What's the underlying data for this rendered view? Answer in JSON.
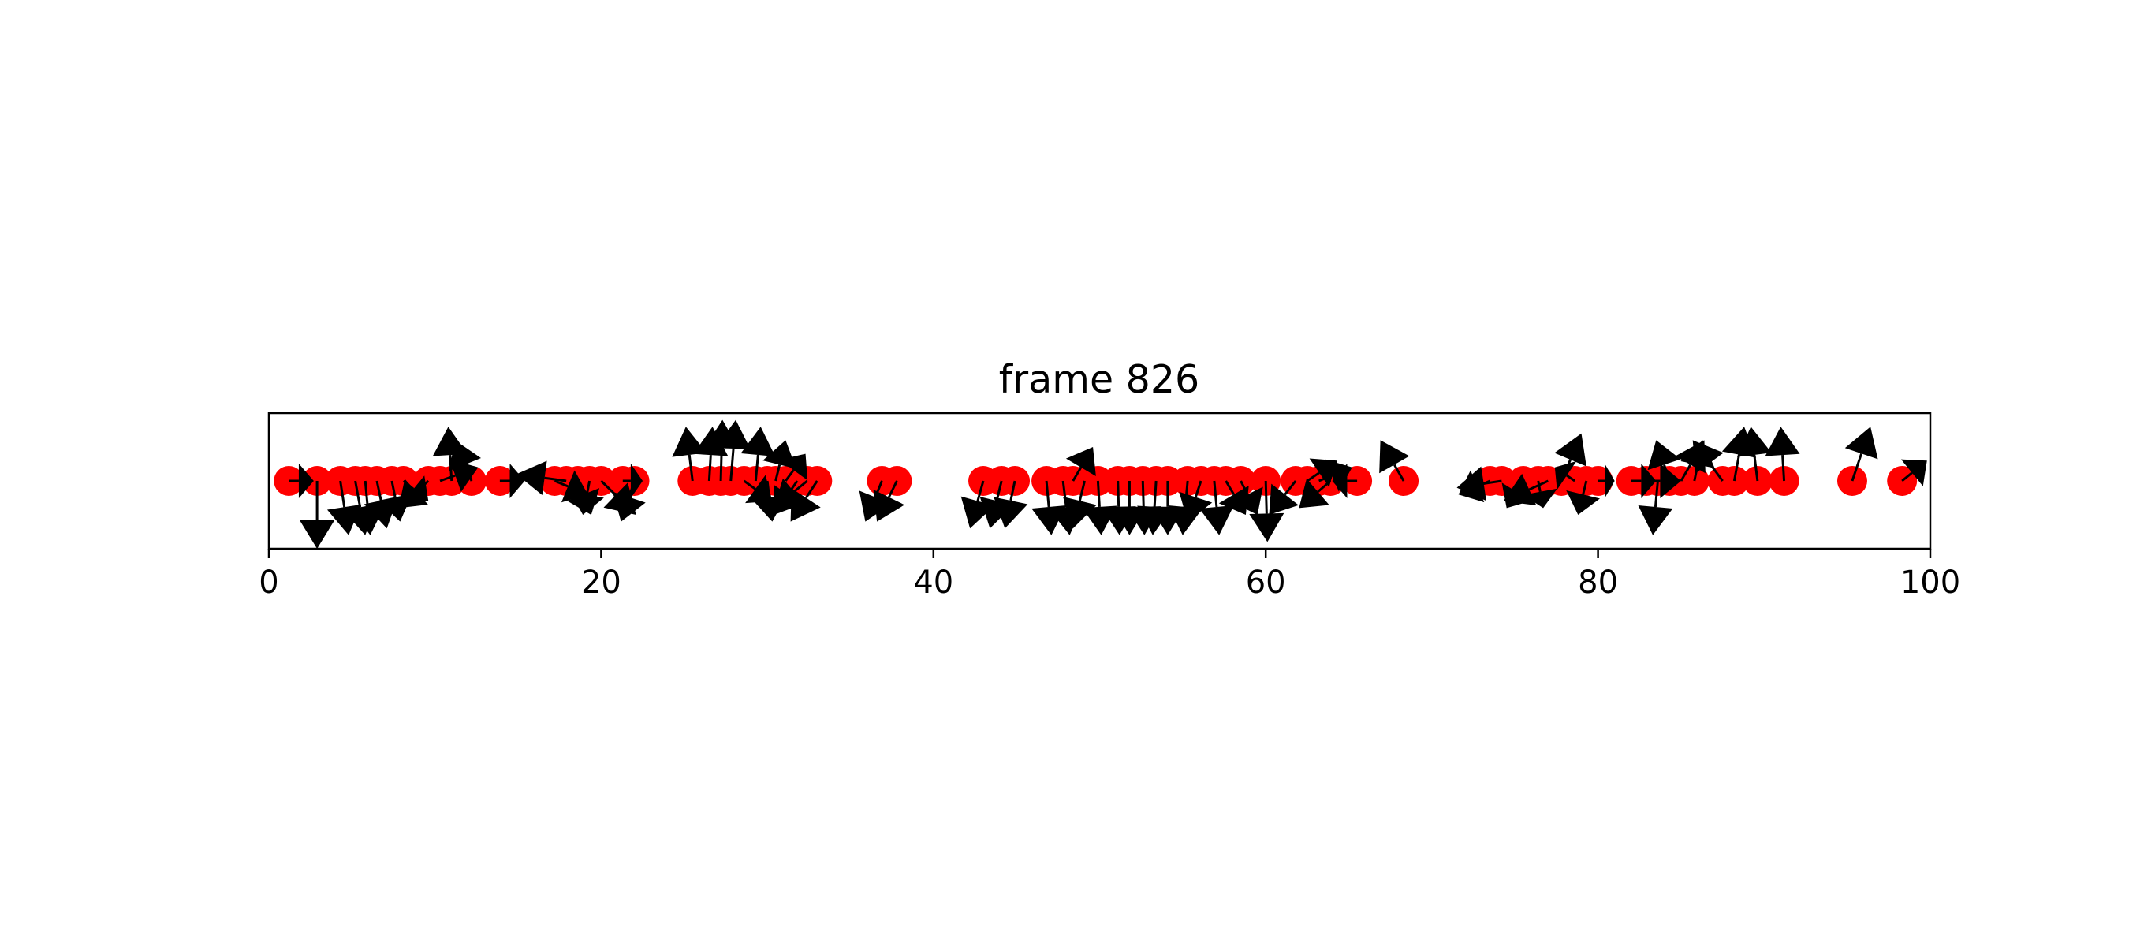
{
  "chart_data": {
    "type": "scatter",
    "title": "frame 826",
    "xlabel": "",
    "ylabel": "",
    "xlim": [
      0,
      100
    ],
    "ylim": [
      -1,
      1
    ],
    "grid": false,
    "x_ticks": [
      0,
      20,
      40,
      60,
      80,
      100
    ],
    "y_ticks": [],
    "marker_color": "#ff0000",
    "arrow_color": "#000000",
    "points": [
      {
        "x": 1.2,
        "y": 0,
        "dx": 1.5,
        "dy": 0.0
      },
      {
        "x": 2.9,
        "y": 0,
        "dx": 0.0,
        "dy": -1.0
      },
      {
        "x": 4.3,
        "y": 0,
        "dx": 0.5,
        "dy": -0.8
      },
      {
        "x": 5.2,
        "y": 0,
        "dx": 0.6,
        "dy": -0.8
      },
      {
        "x": 5.8,
        "y": 0,
        "dx": 0.3,
        "dy": -0.8
      },
      {
        "x": 6.5,
        "y": 0,
        "dx": 0.6,
        "dy": -0.7
      },
      {
        "x": 7.4,
        "y": 0,
        "dx": 0.5,
        "dy": -0.6
      },
      {
        "x": 8.1,
        "y": 0,
        "dx": 1.5,
        "dy": -0.3
      },
      {
        "x": 9.6,
        "y": 0,
        "dx": -1.8,
        "dy": -0.4
      },
      {
        "x": 10.3,
        "y": 0,
        "dx": 2.3,
        "dy": 0.2
      },
      {
        "x": 11.0,
        "y": 0,
        "dx": -0.2,
        "dy": 0.8
      },
      {
        "x": 12.2,
        "y": 0,
        "dx": -1.0,
        "dy": 0.6
      },
      {
        "x": 13.9,
        "y": 0,
        "dx": 1.5,
        "dy": 0.0
      },
      {
        "x": 17.2,
        "y": 0,
        "dx": 2.0,
        "dy": -0.2
      },
      {
        "x": 17.9,
        "y": 0,
        "dx": -3.0,
        "dy": 0.1
      },
      {
        "x": 18.6,
        "y": 0,
        "dx": 0.8,
        "dy": -0.5
      },
      {
        "x": 19.3,
        "y": 0,
        "dx": -0.4,
        "dy": -0.5
      },
      {
        "x": 20.0,
        "y": 0,
        "dx": 2.1,
        "dy": -0.5
      },
      {
        "x": 21.3,
        "y": 0,
        "dx": 1.2,
        "dy": 0.0
      },
      {
        "x": 22.0,
        "y": 0,
        "dx": -0.8,
        "dy": -0.6
      },
      {
        "x": 25.5,
        "y": 0,
        "dx": -0.4,
        "dy": 0.8
      },
      {
        "x": 26.5,
        "y": 0,
        "dx": 0.2,
        "dy": 0.8
      },
      {
        "x": 27.2,
        "y": 0,
        "dx": 0.1,
        "dy": 0.9
      },
      {
        "x": 27.8,
        "y": 0,
        "dx": 0.3,
        "dy": 0.9
      },
      {
        "x": 28.6,
        "y": 0,
        "dx": 1.7,
        "dy": -0.3
      },
      {
        "x": 29.3,
        "y": 0,
        "dx": 0.3,
        "dy": 0.8
      },
      {
        "x": 30.0,
        "y": 0,
        "dx": 0.3,
        "dy": -0.6
      },
      {
        "x": 30.5,
        "y": 0,
        "dx": 0.6,
        "dy": 0.6
      },
      {
        "x": 31.1,
        "y": 0,
        "dx": 1.2,
        "dy": 0.4
      },
      {
        "x": 31.8,
        "y": 0,
        "dx": -1.4,
        "dy": -0.5
      },
      {
        "x": 32.4,
        "y": 0,
        "dx": -2.0,
        "dy": -0.4
      },
      {
        "x": 33.0,
        "y": 0,
        "dx": -1.6,
        "dy": -0.6
      },
      {
        "x": 36.9,
        "y": 0,
        "dx": -1.0,
        "dy": -0.6
      },
      {
        "x": 37.8,
        "y": 0,
        "dx": -1.2,
        "dy": -0.6
      },
      {
        "x": 43.0,
        "y": 0,
        "dx": -0.8,
        "dy": -0.7
      },
      {
        "x": 44.1,
        "y": 0,
        "dx": -0.7,
        "dy": -0.7
      },
      {
        "x": 44.9,
        "y": 0,
        "dx": -0.6,
        "dy": -0.7
      },
      {
        "x": 46.8,
        "y": 0,
        "dx": 0.3,
        "dy": -0.8
      },
      {
        "x": 47.8,
        "y": 0,
        "dx": 0.4,
        "dy": -0.8
      },
      {
        "x": 48.4,
        "y": 0,
        "dx": 1.2,
        "dy": 0.5
      },
      {
        "x": 49.1,
        "y": 0,
        "dx": -0.7,
        "dy": -0.7
      },
      {
        "x": 49.9,
        "y": 0,
        "dx": 0.2,
        "dy": -0.8
      },
      {
        "x": 51.1,
        "y": 0,
        "dx": 0.1,
        "dy": -0.8
      },
      {
        "x": 51.8,
        "y": 0,
        "dx": 0.0,
        "dy": -0.8
      },
      {
        "x": 52.6,
        "y": 0,
        "dx": 0.1,
        "dy": -0.8
      },
      {
        "x": 53.4,
        "y": 0,
        "dx": -0.2,
        "dy": -0.8
      },
      {
        "x": 54.1,
        "y": 0,
        "dx": 0.0,
        "dy": -0.8
      },
      {
        "x": 55.3,
        "y": 0,
        "dx": -0.3,
        "dy": -0.8
      },
      {
        "x": 56.1,
        "y": 0,
        "dx": -0.8,
        "dy": -0.6
      },
      {
        "x": 56.9,
        "y": 0,
        "dx": 0.3,
        "dy": -0.8
      },
      {
        "x": 57.6,
        "y": 0,
        "dx": 1.2,
        "dy": -0.5
      },
      {
        "x": 58.5,
        "y": 0,
        "dx": 1.0,
        "dy": -0.5
      },
      {
        "x": 60.0,
        "y": 0,
        "dx": 0.1,
        "dy": -0.9
      },
      {
        "x": 61.8,
        "y": 0,
        "dx": -1.6,
        "dy": -0.5
      },
      {
        "x": 62.5,
        "y": 0,
        "dx": 1.8,
        "dy": 0.3
      },
      {
        "x": 63.2,
        "y": 0,
        "dx": 2.0,
        "dy": 0.2
      },
      {
        "x": 63.9,
        "y": 0,
        "dx": -1.9,
        "dy": -0.4
      },
      {
        "x": 65.5,
        "y": 0,
        "dx": -1.5,
        "dy": 0.0
      },
      {
        "x": 68.3,
        "y": 0,
        "dx": -1.4,
        "dy": 0.6
      },
      {
        "x": 73.5,
        "y": 0,
        "dx": -1.9,
        "dy": -0.2
      },
      {
        "x": 74.2,
        "y": 0,
        "dx": -2.7,
        "dy": -0.1
      },
      {
        "x": 75.5,
        "y": 0,
        "dx": -1.0,
        "dy": -0.4
      },
      {
        "x": 76.4,
        "y": 0,
        "dx": 0.3,
        "dy": -0.4
      },
      {
        "x": 77.0,
        "y": 0,
        "dx": -2.7,
        "dy": -0.3
      },
      {
        "x": 77.8,
        "y": 0,
        "dx": 1.2,
        "dy": 0.7
      },
      {
        "x": 78.6,
        "y": 0,
        "dx": -1.2,
        "dy": 0.2
      },
      {
        "x": 79.3,
        "y": 0,
        "dx": -0.5,
        "dy": -0.5
      },
      {
        "x": 80.0,
        "y": 0,
        "dx": 1.0,
        "dy": 0.0
      },
      {
        "x": 82.0,
        "y": 0,
        "dx": 1.5,
        "dy": 0.0
      },
      {
        "x": 82.9,
        "y": 0,
        "dx": 2.1,
        "dy": 0.0
      },
      {
        "x": 83.6,
        "y": 0,
        "dx": -0.3,
        "dy": -0.8
      },
      {
        "x": 84.3,
        "y": 0,
        "dx": -0.8,
        "dy": 0.6
      },
      {
        "x": 85.0,
        "y": 0,
        "dx": 1.4,
        "dy": 0.6
      },
      {
        "x": 85.8,
        "y": 0,
        "dx": 0.5,
        "dy": 0.6
      },
      {
        "x": 87.5,
        "y": 0,
        "dx": -1.8,
        "dy": 0.6
      },
      {
        "x": 88.2,
        "y": 0,
        "dx": 0.6,
        "dy": 0.8
      },
      {
        "x": 89.6,
        "y": 0,
        "dx": -0.4,
        "dy": 0.8
      },
      {
        "x": 91.2,
        "y": 0,
        "dx": -0.2,
        "dy": 0.8
      },
      {
        "x": 95.3,
        "y": 0,
        "dx": 1.1,
        "dy": 0.8
      },
      {
        "x": 98.3,
        "y": 0,
        "dx": 1.5,
        "dy": 0.3
      }
    ]
  }
}
